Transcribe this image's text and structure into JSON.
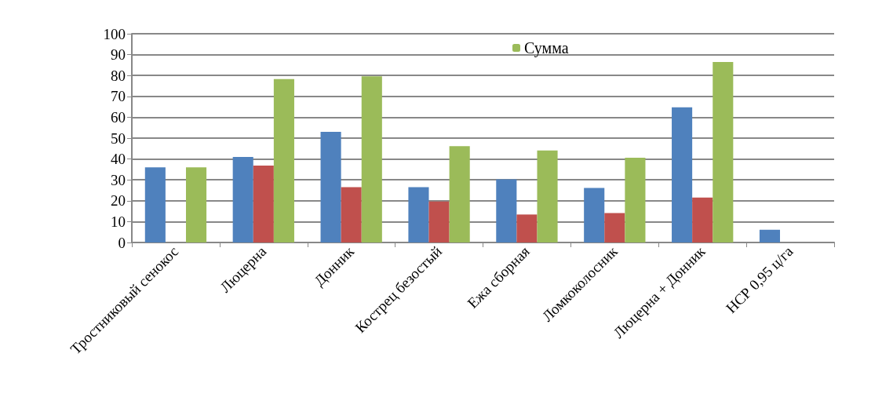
{
  "chart_data": {
    "type": "bar",
    "categories": [
      "Тростниковый сенокос",
      "Люцерна",
      "Донник",
      "Кострец безостый",
      "Ежа сборная",
      "Ломкоколосник",
      "Люцерна + Донник",
      "НСР 0,95 ц/га"
    ],
    "series": [
      {
        "color": "#4f81bd",
        "values": [
          36,
          41,
          53,
          26.5,
          30.3,
          26.1,
          64.8,
          6.1
        ]
      },
      {
        "color": "#c0504d",
        "values": [
          null,
          36.8,
          26.5,
          19.6,
          13.4,
          14.1,
          21.5,
          null
        ]
      },
      {
        "name": "Сумма",
        "color": "#9bbb59",
        "values": [
          36,
          78.3,
          79.6,
          46.1,
          44.1,
          40.6,
          86.5,
          null
        ]
      }
    ],
    "ylim": [
      0,
      100
    ],
    "yticks": [
      0,
      10,
      20,
      30,
      40,
      50,
      60,
      70,
      80,
      90,
      100
    ],
    "grid": "y",
    "legend": "top"
  }
}
